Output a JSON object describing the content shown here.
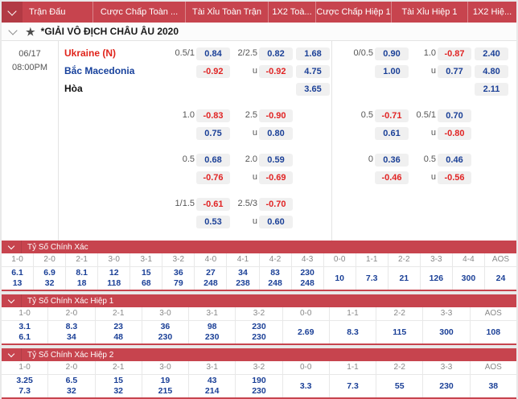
{
  "header": {
    "columns": [
      "Trận Đấu",
      "Cược Chấp Toàn ...",
      "Tài Xỉu Toàn Trận",
      "1X2 Toà...",
      "Cược Chấp Hiệp 1",
      "Tài Xỉu Hiệp 1",
      "1X2 Hiệ..."
    ]
  },
  "league": {
    "name": "*GIẢI VÔ ĐỊCH CHÂU ÂU 2020"
  },
  "match": {
    "date": "06/17",
    "time": "08:00PM",
    "teams": {
      "home": "Ukraine (N)",
      "away": "Bắc Macedonia",
      "draw": "Hòa"
    },
    "groups": [
      {
        "lines": [
          {
            "fh_l": "0.5/1",
            "fh_v": "0.84",
            "fo_l": "2/2.5",
            "fo_v": "0.82",
            "fx": "1.68",
            "hh_l": "0/0.5",
            "hh_v": "0.90",
            "ho_l": "1.0",
            "ho_v": "-0.87",
            "hx": "2.40"
          },
          {
            "fh_l": "",
            "fh_v": "-0.92",
            "fo_l": "u",
            "fo_v": "-0.92",
            "fx": "4.75",
            "hh_l": "",
            "hh_v": "1.00",
            "ho_l": "u",
            "ho_v": "0.77",
            "hx": "4.80"
          },
          {
            "fh_l": "",
            "fh_v": "",
            "fo_l": "",
            "fo_v": "",
            "fx": "3.65",
            "hh_l": "",
            "hh_v": "",
            "ho_l": "",
            "ho_v": "",
            "hx": "2.11"
          }
        ]
      },
      {
        "lines": [
          {
            "fh_l": "1.0",
            "fh_v": "-0.83",
            "fo_l": "2.5",
            "fo_v": "-0.90",
            "fx": "",
            "hh_l": "0.5",
            "hh_v": "-0.71",
            "ho_l": "0.5/1",
            "ho_v": "0.70",
            "hx": ""
          },
          {
            "fh_l": "",
            "fh_v": "0.75",
            "fo_l": "u",
            "fo_v": "0.80",
            "fx": "",
            "hh_l": "",
            "hh_v": "0.61",
            "ho_l": "u",
            "ho_v": "-0.80",
            "hx": ""
          }
        ]
      },
      {
        "lines": [
          {
            "fh_l": "0.5",
            "fh_v": "0.68",
            "fo_l": "2.0",
            "fo_v": "0.59",
            "fx": "",
            "hh_l": "0",
            "hh_v": "0.36",
            "ho_l": "0.5",
            "ho_v": "0.46",
            "hx": ""
          },
          {
            "fh_l": "",
            "fh_v": "-0.76",
            "fo_l": "u",
            "fo_v": "-0.69",
            "fx": "",
            "hh_l": "",
            "hh_v": "-0.46",
            "ho_l": "u",
            "ho_v": "-0.56",
            "hx": ""
          }
        ]
      },
      {
        "lines": [
          {
            "fh_l": "1/1.5",
            "fh_v": "-0.61",
            "fo_l": "2.5/3",
            "fo_v": "-0.70",
            "fx": "",
            "hh_l": "",
            "hh_v": "",
            "ho_l": "",
            "ho_v": "",
            "hx": ""
          },
          {
            "fh_l": "",
            "fh_v": "0.53",
            "fo_l": "u",
            "fo_v": "0.60",
            "fx": "",
            "hh_l": "",
            "hh_v": "",
            "ho_l": "",
            "ho_v": "",
            "hx": ""
          }
        ]
      }
    ]
  },
  "score_sections": [
    {
      "title": "Tỷ Số Chính Xác",
      "columns": [
        {
          "h": "1-0",
          "v": [
            "6.1",
            "13"
          ]
        },
        {
          "h": "2-0",
          "v": [
            "6.9",
            "32"
          ]
        },
        {
          "h": "2-1",
          "v": [
            "8.1",
            "18"
          ]
        },
        {
          "h": "3-0",
          "v": [
            "12",
            "118"
          ]
        },
        {
          "h": "3-1",
          "v": [
            "15",
            "68"
          ]
        },
        {
          "h": "3-2",
          "v": [
            "36",
            "79"
          ]
        },
        {
          "h": "4-0",
          "v": [
            "27",
            "248"
          ]
        },
        {
          "h": "4-1",
          "v": [
            "34",
            "238"
          ]
        },
        {
          "h": "4-2",
          "v": [
            "83",
            "248"
          ]
        },
        {
          "h": "4-3",
          "v": [
            "230",
            "248"
          ]
        },
        {
          "h": "0-0",
          "v": [
            "10"
          ]
        },
        {
          "h": "1-1",
          "v": [
            "7.3"
          ]
        },
        {
          "h": "2-2",
          "v": [
            "21"
          ]
        },
        {
          "h": "3-3",
          "v": [
            "126"
          ]
        },
        {
          "h": "4-4",
          "v": [
            "300"
          ]
        },
        {
          "h": "AOS",
          "v": [
            "24"
          ]
        }
      ]
    },
    {
      "title": "Tỷ Số Chính Xác Hiệp 1",
      "columns": [
        {
          "h": "1-0",
          "v": [
            "3.1",
            "6.1"
          ]
        },
        {
          "h": "2-0",
          "v": [
            "8.3",
            "34"
          ]
        },
        {
          "h": "2-1",
          "v": [
            "23",
            "48"
          ]
        },
        {
          "h": "3-0",
          "v": [
            "36",
            "230"
          ]
        },
        {
          "h": "3-1",
          "v": [
            "98",
            "230"
          ]
        },
        {
          "h": "3-2",
          "v": [
            "230",
            "230"
          ]
        },
        {
          "h": "0-0",
          "v": [
            "2.69"
          ]
        },
        {
          "h": "1-1",
          "v": [
            "8.3"
          ]
        },
        {
          "h": "2-2",
          "v": [
            "115"
          ]
        },
        {
          "h": "3-3",
          "v": [
            "300"
          ]
        },
        {
          "h": "AOS",
          "v": [
            "108"
          ]
        }
      ]
    },
    {
      "title": "Tỷ Số Chính Xác Hiệp 2",
      "columns": [
        {
          "h": "1-0",
          "v": [
            "3.25",
            "7.3"
          ]
        },
        {
          "h": "2-0",
          "v": [
            "6.5",
            "32"
          ]
        },
        {
          "h": "2-1",
          "v": [
            "15",
            "32"
          ]
        },
        {
          "h": "3-0",
          "v": [
            "19",
            "215"
          ]
        },
        {
          "h": "3-1",
          "v": [
            "43",
            "214"
          ]
        },
        {
          "h": "3-2",
          "v": [
            "190",
            "230"
          ]
        },
        {
          "h": "0-0",
          "v": [
            "3.3"
          ]
        },
        {
          "h": "1-1",
          "v": [
            "7.3"
          ]
        },
        {
          "h": "2-2",
          "v": [
            "55"
          ]
        },
        {
          "h": "3-3",
          "v": [
            "230"
          ]
        },
        {
          "h": "AOS",
          "v": [
            "38"
          ]
        }
      ]
    }
  ],
  "colors": {
    "header_red": "#c7444e",
    "header_red_dark": "#b23a44",
    "odds_blue": "#1b4097",
    "odds_red": "#e12424",
    "home_red": "#e0241b",
    "away_blue": "#17419c"
  }
}
